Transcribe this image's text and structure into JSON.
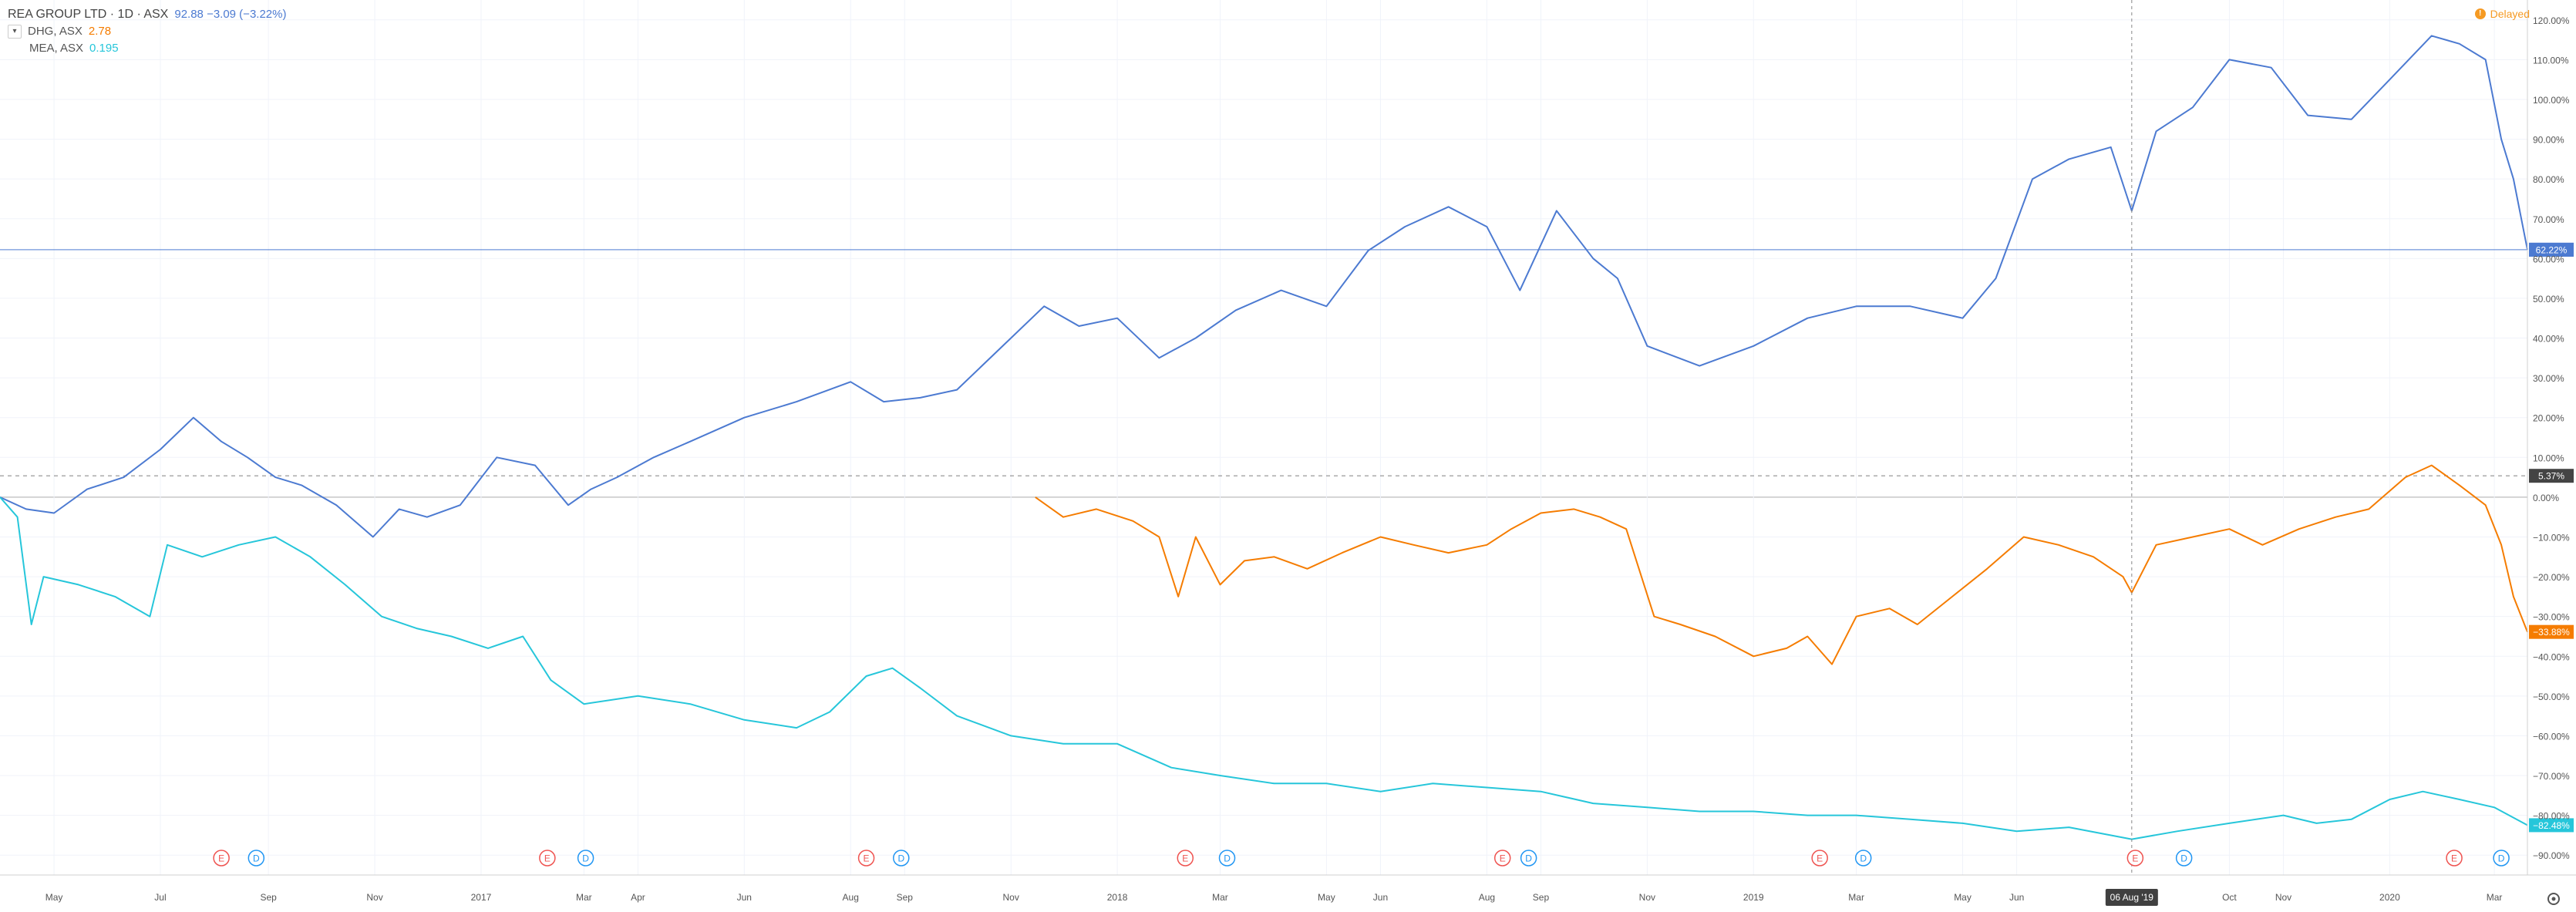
{
  "legend": {
    "main_title": "REA GROUP LTD · 1D · ASX",
    "main_value": "92.88  −3.09 (−3.22%)",
    "compare": [
      {
        "name": "DHG, ASX",
        "value": "2.78",
        "color": "#f57c00"
      },
      {
        "name": "MEA, ASX",
        "value": "0.195",
        "color": "#26c6da"
      }
    ]
  },
  "delayed": {
    "label": "Delayed",
    "icon": "clock-icon"
  },
  "crosshair": {
    "date_label": "06 Aug '19"
  },
  "chart_data": {
    "type": "line",
    "grid": true,
    "y_unit": "%",
    "ylim": [
      -95,
      125
    ],
    "yticks": [
      "120.00%",
      "110.00%",
      "100.00%",
      "90.00%",
      "80.00%",
      "70.00%",
      "60.00%",
      "50.00%",
      "40.00%",
      "30.00%",
      "20.00%",
      "10.00%",
      "0.00%",
      "−10.00%",
      "−20.00%",
      "−30.00%",
      "−40.00%",
      "−50.00%",
      "−60.00%",
      "−70.00%",
      "−80.00%",
      "−90.00%"
    ],
    "yvalues": [
      120,
      110,
      100,
      90,
      80,
      70,
      60,
      50,
      40,
      30,
      20,
      10,
      0,
      -10,
      -20,
      -30,
      -40,
      -50,
      -60,
      -70,
      -80,
      -90
    ],
    "xticks": [
      "May",
      "Jul",
      "Sep",
      "Nov",
      "2017",
      "Mar",
      "Apr",
      "Jun",
      "Aug",
      "Sep",
      "Nov",
      "2018",
      "Mar",
      "May",
      "Jun",
      "Aug",
      "Sep",
      "Nov",
      "2019",
      "Mar",
      "May",
      "Jun",
      "Oct",
      "Nov",
      "2020",
      "Mar"
    ],
    "xtick_dates": [
      "2016-05-01",
      "2016-07-01",
      "2016-09-01",
      "2016-11-01",
      "2017-01-01",
      "2017-03-01",
      "2017-04-01",
      "2017-06-01",
      "2017-08-01",
      "2017-09-01",
      "2017-11-01",
      "2018-01-01",
      "2018-03-01",
      "2018-05-01",
      "2018-06-01",
      "2018-08-01",
      "2018-09-01",
      "2018-11-01",
      "2019-01-01",
      "2019-03-01",
      "2019-05-01",
      "2019-06-01",
      "2019-10-01",
      "2019-11-01",
      "2020-01-01",
      "2020-03-01"
    ],
    "x_range": [
      "2016-03-31",
      "2020-03-20"
    ],
    "ref_lines": [
      {
        "value": 5.37,
        "label": "5.37%",
        "color": "#444444",
        "style": "dashed"
      },
      {
        "value": 62.22,
        "label": "62.22%",
        "color": "#4c7ad1",
        "style": "solid"
      }
    ],
    "series": [
      {
        "name": "REA GROUP LTD",
        "color": "#4c7ad1",
        "last_label": "62.22%",
        "x": [
          "2016-03-31",
          "2016-04-15",
          "2016-05-01",
          "2016-05-20",
          "2016-06-10",
          "2016-07-01",
          "2016-07-20",
          "2016-08-05",
          "2016-08-20",
          "2016-09-05",
          "2016-09-20",
          "2016-10-10",
          "2016-10-31",
          "2016-11-15",
          "2016-12-01",
          "2016-12-20",
          "2017-01-10",
          "2017-02-01",
          "2017-02-20",
          "2017-03-05",
          "2017-03-20",
          "2017-04-10",
          "2017-05-01",
          "2017-06-01",
          "2017-07-01",
          "2017-08-01",
          "2017-08-20",
          "2017-09-10",
          "2017-10-01",
          "2017-11-01",
          "2017-11-20",
          "2017-12-10",
          "2018-01-01",
          "2018-01-25",
          "2018-02-15",
          "2018-03-10",
          "2018-04-05",
          "2018-05-01",
          "2018-05-25",
          "2018-06-15",
          "2018-07-10",
          "2018-08-01",
          "2018-08-20",
          "2018-09-10",
          "2018-10-01",
          "2018-10-15",
          "2018-11-01",
          "2018-12-01",
          "2019-01-01",
          "2019-02-01",
          "2019-03-01",
          "2019-04-01",
          "2019-05-01",
          "2019-05-20",
          "2019-06-10",
          "2019-07-01",
          "2019-07-25",
          "2019-08-06",
          "2019-08-20",
          "2019-09-10",
          "2019-10-01",
          "2019-10-25",
          "2019-11-15",
          "2019-12-10",
          "2020-01-01",
          "2020-01-25",
          "2020-02-10",
          "2020-02-25",
          "2020-03-05",
          "2020-03-12",
          "2020-03-20"
        ],
        "y": [
          0,
          -3,
          -4,
          2,
          5,
          12,
          20,
          14,
          10,
          5,
          3,
          -2,
          -10,
          -3,
          -5,
          -2,
          10,
          8,
          -2,
          2,
          5,
          10,
          14,
          20,
          24,
          29,
          24,
          25,
          27,
          40,
          48,
          43,
          45,
          35,
          40,
          47,
          52,
          48,
          62,
          68,
          73,
          68,
          52,
          72,
          60,
          55,
          38,
          33,
          38,
          45,
          48,
          48,
          45,
          55,
          80,
          85,
          88,
          72,
          92,
          98,
          110,
          108,
          96,
          95,
          105,
          116,
          114,
          110,
          90,
          80,
          62.22
        ]
      },
      {
        "name": "DHG, ASX",
        "color": "#f57c00",
        "last_label": "−33.88%",
        "x": [
          "2017-11-15",
          "2017-12-01",
          "2017-12-20",
          "2018-01-10",
          "2018-01-25",
          "2018-02-05",
          "2018-02-15",
          "2018-03-01",
          "2018-03-15",
          "2018-04-01",
          "2018-04-20",
          "2018-05-10",
          "2018-06-01",
          "2018-06-20",
          "2018-07-10",
          "2018-08-01",
          "2018-08-15",
          "2018-09-01",
          "2018-09-20",
          "2018-10-05",
          "2018-10-20",
          "2018-11-05",
          "2018-11-20",
          "2018-12-10",
          "2019-01-01",
          "2019-01-20",
          "2019-02-01",
          "2019-02-15",
          "2019-03-01",
          "2019-03-20",
          "2019-04-05",
          "2019-04-25",
          "2019-05-15",
          "2019-06-05",
          "2019-06-25",
          "2019-07-15",
          "2019-08-01",
          "2019-08-06",
          "2019-08-20",
          "2019-09-10",
          "2019-10-01",
          "2019-10-20",
          "2019-11-10",
          "2019-12-01",
          "2019-12-20",
          "2020-01-10",
          "2020-01-25",
          "2020-02-10",
          "2020-02-25",
          "2020-03-05",
          "2020-03-12",
          "2020-03-20"
        ],
        "y": [
          0,
          -5,
          -3,
          -6,
          -10,
          -25,
          -10,
          -22,
          -16,
          -15,
          -18,
          -14,
          -10,
          -12,
          -14,
          -12,
          -8,
          -4,
          -3,
          -5,
          -8,
          -30,
          -32,
          -35,
          -40,
          -38,
          -35,
          -42,
          -30,
          -28,
          -32,
          -25,
          -18,
          -10,
          -12,
          -15,
          -20,
          -24,
          -12,
          -10,
          -8,
          -12,
          -8,
          -5,
          -3,
          5,
          8,
          3,
          -2,
          -12,
          -25,
          -33.88
        ]
      },
      {
        "name": "MEA, ASX",
        "color": "#26c6da",
        "last_label": "−82.48%",
        "x": [
          "2016-03-31",
          "2016-04-10",
          "2016-04-18",
          "2016-04-25",
          "2016-05-15",
          "2016-06-05",
          "2016-06-25",
          "2016-07-05",
          "2016-07-25",
          "2016-08-15",
          "2016-09-05",
          "2016-09-25",
          "2016-10-15",
          "2016-11-05",
          "2016-11-25",
          "2016-12-15",
          "2017-01-05",
          "2017-01-25",
          "2017-02-10",
          "2017-03-01",
          "2017-04-01",
          "2017-05-01",
          "2017-06-01",
          "2017-07-01",
          "2017-07-20",
          "2017-08-10",
          "2017-08-25",
          "2017-09-10",
          "2017-10-01",
          "2017-11-01",
          "2017-12-01",
          "2018-01-01",
          "2018-02-01",
          "2018-03-01",
          "2018-04-01",
          "2018-05-01",
          "2018-06-01",
          "2018-07-01",
          "2018-08-01",
          "2018-09-01",
          "2018-10-01",
          "2018-11-01",
          "2018-12-01",
          "2019-01-01",
          "2019-02-01",
          "2019-03-01",
          "2019-04-01",
          "2019-05-01",
          "2019-06-01",
          "2019-07-01",
          "2019-08-06",
          "2019-09-01",
          "2019-10-01",
          "2019-11-01",
          "2019-11-20",
          "2019-12-10",
          "2020-01-01",
          "2020-01-20",
          "2020-02-10",
          "2020-03-01",
          "2020-03-20"
        ],
        "y": [
          0,
          -5,
          -32,
          -20,
          -22,
          -25,
          -30,
          -12,
          -15,
          -12,
          -10,
          -15,
          -22,
          -30,
          -33,
          -35,
          -38,
          -35,
          -46,
          -52,
          -50,
          -52,
          -56,
          -58,
          -54,
          -45,
          -43,
          -48,
          -55,
          -60,
          -62,
          -62,
          -68,
          -70,
          -72,
          -72,
          -74,
          -72,
          -73,
          -74,
          -77,
          -78,
          -79,
          -79,
          -80,
          -80,
          -81,
          -82,
          -84,
          -83,
          -86,
          -84,
          -82,
          -80,
          -82,
          -81,
          -76,
          -74,
          -76,
          -78,
          -82.48
        ]
      }
    ],
    "event_markers": [
      {
        "date": "2016-08-05",
        "label": "E",
        "kind": "earnings"
      },
      {
        "date": "2016-08-25",
        "label": "D",
        "kind": "dividend"
      },
      {
        "date": "2017-02-08",
        "label": "E",
        "kind": "earnings"
      },
      {
        "date": "2017-03-02",
        "label": "D",
        "kind": "dividend"
      },
      {
        "date": "2017-08-10",
        "label": "E",
        "kind": "earnings"
      },
      {
        "date": "2017-08-30",
        "label": "D",
        "kind": "dividend"
      },
      {
        "date": "2018-02-09",
        "label": "E",
        "kind": "earnings"
      },
      {
        "date": "2018-03-05",
        "label": "D",
        "kind": "dividend"
      },
      {
        "date": "2018-08-10",
        "label": "E",
        "kind": "earnings"
      },
      {
        "date": "2018-08-25",
        "label": "D",
        "kind": "dividend"
      },
      {
        "date": "2019-02-08",
        "label": "E",
        "kind": "earnings"
      },
      {
        "date": "2019-03-05",
        "label": "D",
        "kind": "dividend"
      },
      {
        "date": "2019-08-08",
        "label": "E",
        "kind": "earnings"
      },
      {
        "date": "2019-09-05",
        "label": "D",
        "kind": "dividend"
      },
      {
        "date": "2020-02-07",
        "label": "E",
        "kind": "earnings"
      },
      {
        "date": "2020-03-05",
        "label": "D",
        "kind": "dividend"
      }
    ],
    "markers_style": {
      "earnings_color": "#ef5350",
      "dividend_color": "#2196f3"
    },
    "settings_icon": "gear-icon"
  }
}
